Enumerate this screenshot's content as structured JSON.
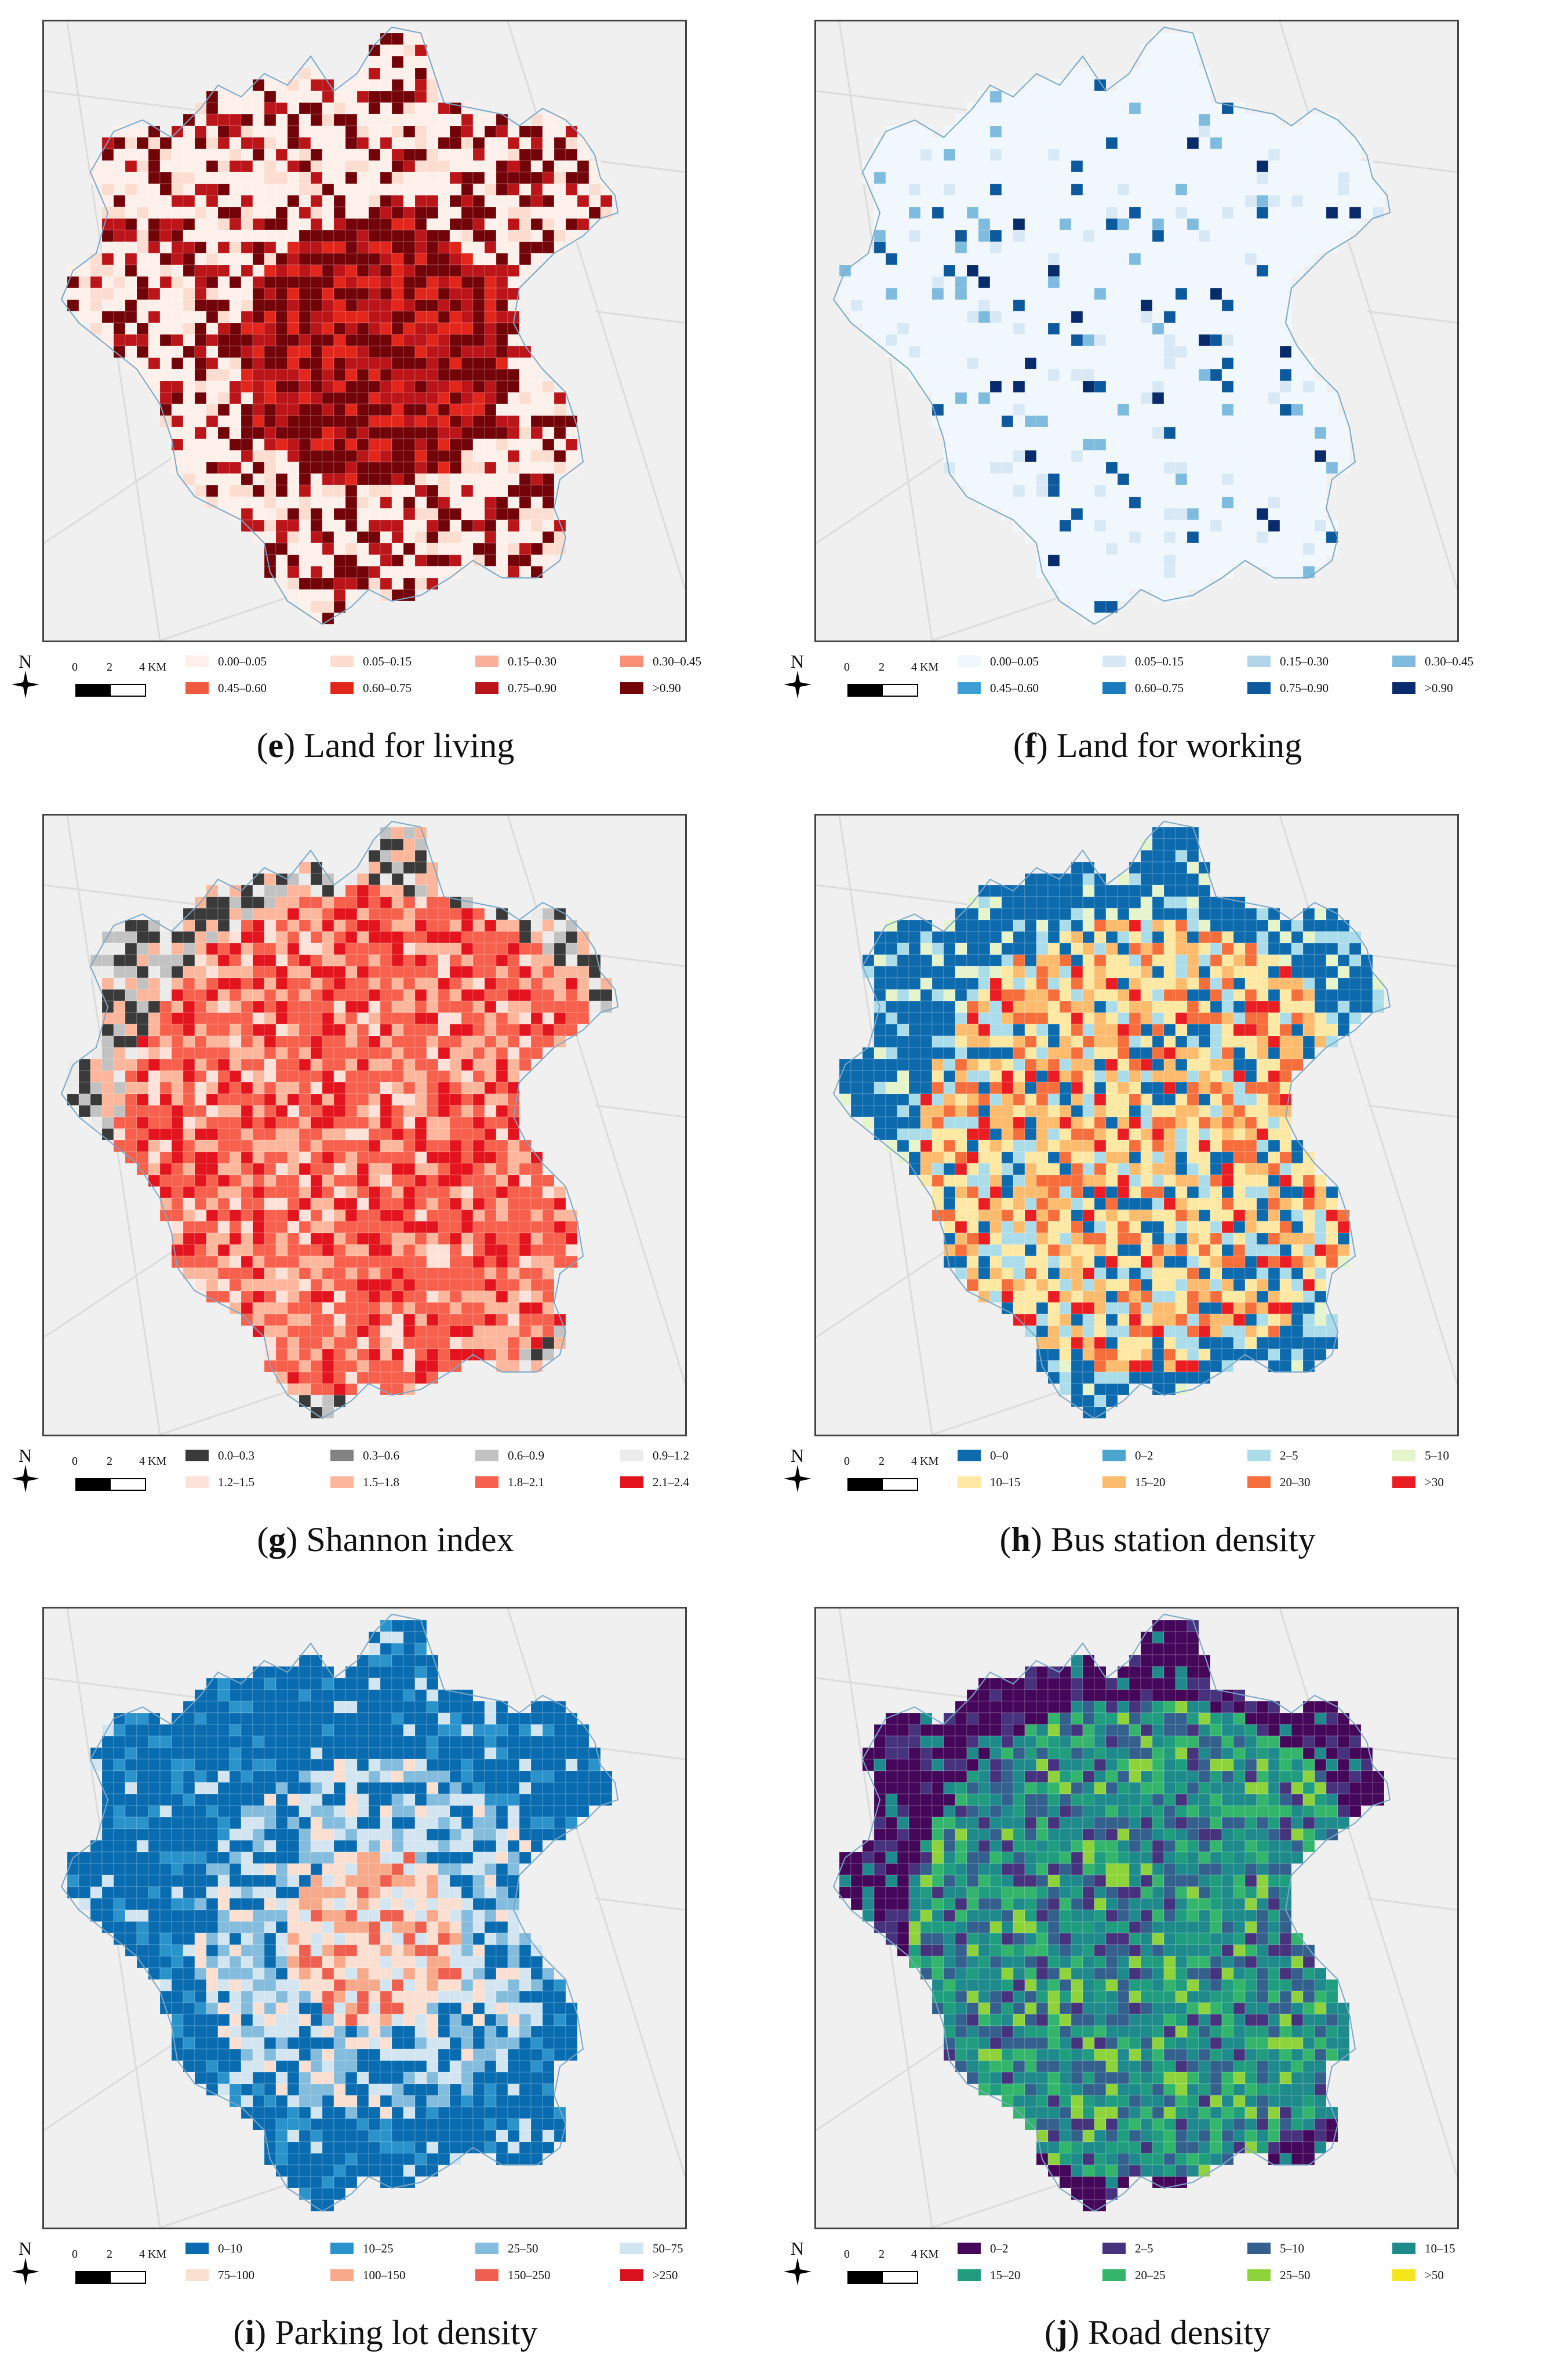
{
  "scale": {
    "ticks": [
      "0",
      "2",
      "4 KM"
    ]
  },
  "north_label": "N",
  "panels": [
    {
      "id": "e",
      "letter": "e",
      "title": "Land for living",
      "legend": [
        {
          "label": "0.00–0.05",
          "color": "#fdf0ea"
        },
        {
          "label": "0.05–0.15",
          "color": "#fcddd0"
        },
        {
          "label": "0.15–0.30",
          "color": "#fbb09a"
        },
        {
          "label": "0.30–0.45",
          "color": "#f98f74"
        },
        {
          "label": "0.45–0.60",
          "color": "#f05a3f"
        },
        {
          "label": "0.60–0.75",
          "color": "#e3261c"
        },
        {
          "label": "0.75–0.90",
          "color": "#bb1419"
        },
        {
          "label": ">0.90",
          "color": "#720309"
        }
      ]
    },
    {
      "id": "f",
      "letter": "f",
      "title": "Land for working",
      "legend": [
        {
          "label": "0.00–0.05",
          "color": "#f0f7fd"
        },
        {
          "label": "0.05–0.15",
          "color": "#d8e9f5"
        },
        {
          "label": "0.15–0.30",
          "color": "#b3d5ea"
        },
        {
          "label": "0.30–0.45",
          "color": "#7fbbdf"
        },
        {
          "label": "0.45–0.60",
          "color": "#3c9ed3"
        },
        {
          "label": "0.60–0.75",
          "color": "#1a7bbd"
        },
        {
          "label": "0.75–0.90",
          "color": "#0c5a9d"
        },
        {
          "label": ">0.90",
          "color": "#082c6b"
        }
      ]
    },
    {
      "id": "g",
      "letter": "g",
      "title": "Shannon index",
      "legend": [
        {
          "label": "0.0–0.3",
          "color": "#3a3a3a"
        },
        {
          "label": "0.3–0.6",
          "color": "#838383"
        },
        {
          "label": "0.6–0.9",
          "color": "#c2c2c2"
        },
        {
          "label": "0.9–1.2",
          "color": "#ebebeb"
        },
        {
          "label": "1.2–1.5",
          "color": "#fde2da"
        },
        {
          "label": "1.5–1.8",
          "color": "#fcb69c"
        },
        {
          "label": "1.8–2.1",
          "color": "#f7604d"
        },
        {
          "label": "2.1–2.4",
          "color": "#e3141e"
        }
      ]
    },
    {
      "id": "h",
      "letter": "h",
      "title": "Bus station density",
      "legend": [
        {
          "label": "0–0",
          "color": "#0c6aad"
        },
        {
          "label": "0–2",
          "color": "#4aa6d1"
        },
        {
          "label": "2–5",
          "color": "#abdcea"
        },
        {
          "label": "5–10",
          "color": "#e5f4cb"
        },
        {
          "label": "10–15",
          "color": "#fde9a3"
        },
        {
          "label": "15–20",
          "color": "#fdbb6e"
        },
        {
          "label": "20–30",
          "color": "#f66e3b"
        },
        {
          "label": ">30",
          "color": "#ea1d22"
        }
      ]
    },
    {
      "id": "i",
      "letter": "i",
      "title": "Parking lot density",
      "legend": [
        {
          "label": "0–10",
          "color": "#0a6cb0"
        },
        {
          "label": "10–25",
          "color": "#2a93cb"
        },
        {
          "label": "25–50",
          "color": "#84bcdd"
        },
        {
          "label": "50–75",
          "color": "#d2e5f0"
        },
        {
          "label": "75–100",
          "color": "#fbdfd1"
        },
        {
          "label": "100–150",
          "color": "#f7a98a"
        },
        {
          "label": "150–250",
          "color": "#ef5f4f"
        },
        {
          "label": ">250",
          "color": "#d9101e"
        }
      ]
    },
    {
      "id": "j",
      "letter": "j",
      "title": "Road density",
      "legend": [
        {
          "label": "0–2",
          "color": "#45075a"
        },
        {
          "label": "2–5",
          "color": "#46327d"
        },
        {
          "label": "5–10",
          "color": "#33608c"
        },
        {
          "label": "10–15",
          "color": "#1f8a8b"
        },
        {
          "label": "15–20",
          "color": "#1f9d7e"
        },
        {
          "label": "20–25",
          "color": "#33b66b"
        },
        {
          "label": "25–50",
          "color": "#8fd33c"
        },
        {
          "label": ">50",
          "color": "#f5e51d"
        }
      ]
    }
  ]
}
